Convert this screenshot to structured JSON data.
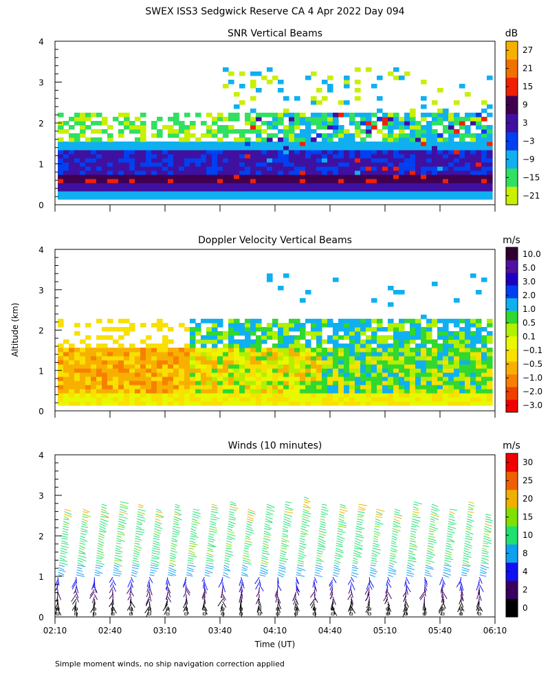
{
  "header": {
    "title": "SWEX ISS3 Sedgwick Reserve CA   4 Apr 2022 Day 094"
  },
  "footer": {
    "note": "Simple moment winds, no ship navigation correction applied"
  },
  "axes": {
    "ylabel": "Altitude (km)",
    "xlabel": "Time (UT)",
    "yticks": [
      "0",
      "1",
      "2",
      "3",
      "4"
    ],
    "xticks": [
      "02:10",
      "02:40",
      "03:10",
      "03:40",
      "04:10",
      "04:40",
      "05:10",
      "05:40",
      "06:10"
    ]
  },
  "colors": {
    "snr_scale": [
      "#c8f000",
      "#30e060",
      "#10b0f0",
      "#0040f0",
      "#4010a0",
      "#400050",
      "#f02000",
      "#f07000",
      "#f8b000"
    ],
    "vel_scale": [
      "#f00000",
      "#f04000",
      "#f88000",
      "#f8b000",
      "#f8e000",
      "#e8f800",
      "#b0f000",
      "#30d830",
      "#10b0f0",
      "#0040f0",
      "#2000c0",
      "#5010a0",
      "#300030"
    ],
    "wind_scale": [
      "#000000",
      "#3a0060",
      "#1010f0",
      "#10a0f0",
      "#20e070",
      "#80e000",
      "#f0b000",
      "#f06000",
      "#f00000"
    ]
  },
  "chart_data": [
    {
      "type": "heatmap",
      "title": "SNR Vertical Beams",
      "units": "dB",
      "x_range": [
        "02:10",
        "06:10"
      ],
      "ylim": [
        0,
        4
      ],
      "ylabel": "Altitude (km)",
      "colorbar_labels": [
        "27",
        "21",
        "15",
        "9",
        "3",
        "−3",
        "−9",
        "−15",
        "−21"
      ],
      "layers": [
        {
          "from_km": 0.1,
          "to_km": 0.3,
          "value_db": -9
        },
        {
          "from_km": 0.3,
          "to_km": 0.5,
          "value_db": 3
        },
        {
          "from_km": 0.5,
          "to_km": 0.7,
          "value_db": 9
        },
        {
          "from_km": 0.7,
          "to_km": 1.2,
          "value_db": 0
        },
        {
          "from_km": 1.2,
          "to_km": 1.5,
          "value_db": -9
        },
        {
          "from_km": 1.5,
          "to_km": 2.2,
          "value_db": -18
        }
      ]
    },
    {
      "type": "heatmap",
      "title": "Doppler Velocity Vertical Beams",
      "units": "m/s",
      "x_range": [
        "02:10",
        "06:10"
      ],
      "ylim": [
        0,
        4
      ],
      "ylabel": "Altitude (km)",
      "colorbar_labels": [
        "10.0",
        "5.0",
        "3.0",
        "2.0",
        "1.0",
        "0.5",
        "0.1",
        "−0.1",
        "−0.5",
        "−1.0",
        "−2.0",
        "−3.0"
      ],
      "layers": [
        {
          "from_km": 0.1,
          "to_km": 0.4,
          "value_ms": -0.3
        },
        {
          "from_km": 0.4,
          "to_km": 1.5,
          "value_ms": -0.7
        },
        {
          "from_km": 1.5,
          "to_km": 2.2,
          "value_ms": 0.5
        }
      ]
    },
    {
      "type": "scatter",
      "title": "Winds (10 minutes)",
      "units": "m/s",
      "x_range": [
        "02:10",
        "06:10"
      ],
      "ylim": [
        0,
        4
      ],
      "ylabel": "Altitude (km)",
      "xlabel": "Time (UT)",
      "colorbar_labels": [
        "30",
        "25",
        "20",
        "15",
        "10",
        "8",
        "4",
        "2",
        "0"
      ],
      "profile_times": [
        "02:10",
        "02:20",
        "02:30",
        "02:40",
        "02:50",
        "03:00",
        "03:10",
        "03:20",
        "03:30",
        "03:40",
        "03:50",
        "04:00",
        "04:10",
        "04:20",
        "04:30",
        "04:40",
        "04:50",
        "05:00",
        "05:10",
        "05:20",
        "05:30",
        "05:40",
        "05:50",
        "06:00"
      ],
      "profile_top_km": [
        2.7,
        2.7,
        2.8,
        2.9,
        2.8,
        2.7,
        2.8,
        2.7,
        2.8,
        2.9,
        2.7,
        2.8,
        2.9,
        3.0,
        2.8,
        2.8,
        2.8,
        2.7,
        2.7,
        2.9,
        2.8,
        2.7,
        2.9,
        2.6
      ]
    }
  ]
}
